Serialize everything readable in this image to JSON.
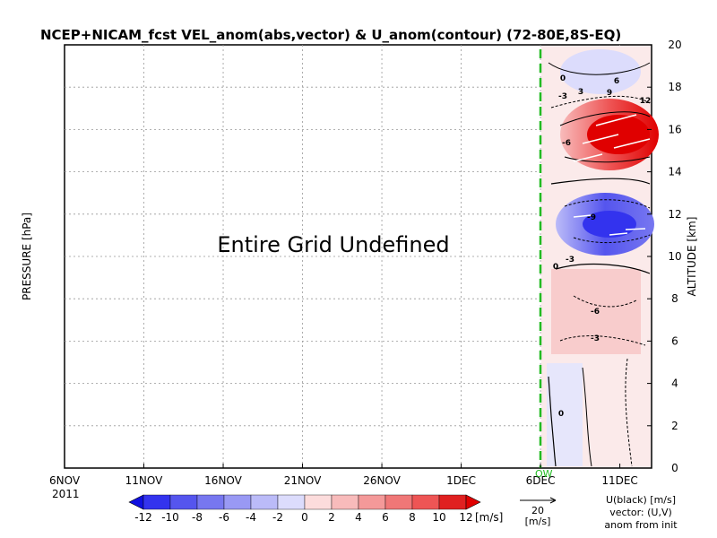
{
  "chart_data": {
    "type": "heatmap",
    "title": "NCEP+NICAM_fcst VEL_anom(abs,vector) & U_anom(contour)   (72-80E,8S-EQ)",
    "ylabel_left": "PRESSURE [hPa]",
    "ylabel_right": "ALTITUDE [km]",
    "annotation": "Entire Grid Undefined",
    "x_ticks": [
      "6NOV",
      "11NOV",
      "16NOV",
      "21NOV",
      "26NOV",
      "1DEC",
      "6DEC",
      "11DEC"
    ],
    "x_year": "2011",
    "x_marker_label": "OW",
    "y_ticks": [
      "0",
      "2",
      "4",
      "6",
      "8",
      "10",
      "12",
      "14",
      "16",
      "18",
      "20"
    ],
    "ylim": [
      0,
      20
    ],
    "grid": true,
    "forecast_start": "6DEC",
    "colorbar": {
      "levels": [
        "-12",
        "-10",
        "-8",
        "-6",
        "-4",
        "-2",
        "0",
        "2",
        "4",
        "6",
        "8",
        "10",
        "12"
      ],
      "unit": "[m/s]",
      "colors": [
        "#1010e0",
        "#3333ee",
        "#5555ee",
        "#7777f0",
        "#9999f4",
        "#bbbbf8",
        "#dcdcfc",
        "#fcdcdc",
        "#f8bbbb",
        "#f49999",
        "#f07777",
        "#ee5555",
        "#e02020",
        "#e00000"
      ]
    },
    "vector_legend": {
      "value": "20",
      "unit": "[m/s]"
    },
    "legend_text": [
      "U(black) [m/s]",
      "vector: (U,V)",
      "anom from init"
    ],
    "contour_labels": [
      "0",
      "3",
      "-3",
      "-6",
      "6",
      "9",
      "-9",
      "12",
      "0",
      "-3",
      "-6",
      "-3",
      "0"
    ],
    "description_series": [
      {
        "altitude_km": 16,
        "u_anom_max": 12,
        "sign": "positive"
      },
      {
        "altitude_km": 11.5,
        "u_anom_min": -10,
        "sign": "negative"
      },
      {
        "altitude_km": 7,
        "u_anom_max": 4,
        "sign": "positive"
      }
    ]
  }
}
